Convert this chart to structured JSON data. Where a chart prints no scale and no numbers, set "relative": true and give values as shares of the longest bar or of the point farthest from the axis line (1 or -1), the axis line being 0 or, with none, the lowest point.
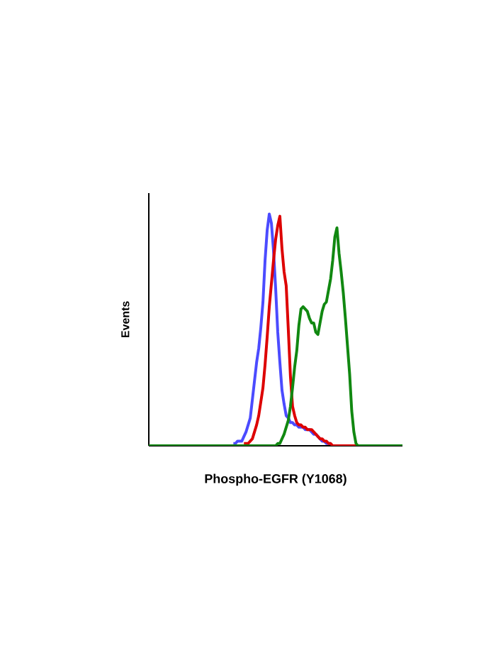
{
  "chart_data": {
    "type": "line",
    "xlabel": "Phospho-EGFR (Y1068)",
    "ylabel": "Events",
    "relative": true,
    "categories": [
      null,
      null,
      null,
      null,
      null,
      null,
      null,
      null,
      null,
      null,
      null,
      null,
      null,
      null,
      null,
      null,
      null,
      null,
      null,
      null,
      null,
      null,
      null,
      null,
      null,
      null,
      null,
      null,
      null,
      null,
      null,
      null,
      null,
      null,
      null,
      null,
      null,
      null,
      null,
      null,
      null,
      null,
      null,
      null,
      null,
      null,
      null,
      null,
      null,
      null,
      null,
      null,
      null,
      null,
      null,
      null,
      null,
      null,
      null,
      null,
      null,
      null,
      null,
      null,
      null,
      null,
      null,
      null,
      null,
      null,
      null,
      null,
      null,
      null,
      null,
      null,
      null,
      null,
      null,
      null,
      null,
      null,
      null,
      null,
      null,
      null,
      null,
      null,
      null,
      null,
      null,
      null,
      null,
      null,
      null,
      null,
      null,
      null,
      null,
      null,
      null,
      null,
      null,
      null,
      null,
      null,
      null,
      null,
      null,
      null,
      null,
      null,
      null,
      null,
      null,
      null,
      null,
      null,
      null,
      null,
      null
    ],
    "series": [
      {
        "color": "#4b4bff",
        "values": [
          null,
          null,
          null,
          null,
          null,
          null,
          null,
          null,
          null,
          null,
          null,
          null,
          null,
          null,
          null,
          null,
          null,
          null,
          null,
          null,
          null,
          null,
          null,
          null,
          null,
          null,
          null,
          null,
          null,
          null,
          null,
          null,
          null,
          null,
          null,
          null,
          null,
          null,
          null,
          null,
          0.01,
          0.01,
          0.02,
          0.02,
          0.02,
          0.04,
          0.06,
          0.09,
          0.12,
          0.2,
          0.28,
          0.36,
          0.42,
          0.51,
          0.62,
          0.8,
          0.93,
          1,
          0.96,
          0.84,
          0.68,
          0.49,
          0.36,
          0.24,
          0.18,
          0.13,
          0.12,
          0.1,
          0.1,
          0.09,
          0.09,
          0.08,
          0.08,
          0.08,
          0.07,
          0.07,
          0.07,
          0.06,
          0.05,
          0.05,
          0.04,
          0.03,
          0.02,
          0.02,
          0.01,
          0.01,
          0.01,
          null,
          null,
          null,
          null,
          null,
          null,
          null,
          null,
          null,
          null,
          null,
          null,
          null,
          null,
          null,
          null,
          null,
          null,
          null,
          null,
          null,
          null,
          null,
          null,
          null,
          null,
          null,
          null,
          null,
          null,
          null,
          null,
          null,
          null
        ]
      },
      {
        "color": "#dd0000",
        "values": [
          null,
          null,
          null,
          null,
          null,
          null,
          null,
          null,
          null,
          null,
          null,
          null,
          null,
          null,
          null,
          null,
          null,
          null,
          null,
          null,
          null,
          null,
          null,
          null,
          null,
          null,
          null,
          null,
          null,
          null,
          null,
          null,
          null,
          null,
          null,
          null,
          null,
          null,
          null,
          null,
          null,
          null,
          null,
          null,
          null,
          0.01,
          0.01,
          0.01,
          0.02,
          0.03,
          0.06,
          0.09,
          0.13,
          0.19,
          0.25,
          0.35,
          0.47,
          0.6,
          0.7,
          0.8,
          0.89,
          0.95,
          0.99,
          0.85,
          0.75,
          0.69,
          0.5,
          0.3,
          0.17,
          0.13,
          0.1,
          0.09,
          0.09,
          0.08,
          0.08,
          0.07,
          0.07,
          0.07,
          0.06,
          0.05,
          0.04,
          0.03,
          0.03,
          0.02,
          0.02,
          0.01,
          0.01,
          0,
          0,
          0,
          0,
          0,
          0,
          0,
          0,
          0,
          0,
          0,
          0,
          0,
          null,
          null,
          null,
          null,
          null,
          null,
          null,
          null,
          null,
          null,
          null,
          null,
          null,
          null,
          null,
          null,
          null,
          null,
          null,
          null,
          null
        ]
      },
      {
        "color": "#118811",
        "values": [
          0,
          0,
          0,
          0,
          0,
          0,
          0,
          0,
          0,
          0,
          0,
          0,
          0,
          0,
          0,
          0,
          0,
          0,
          0,
          0,
          0,
          0,
          0,
          0,
          0,
          0,
          0,
          0,
          0,
          0,
          0,
          0,
          0,
          0,
          0,
          0,
          0,
          0,
          0,
          0,
          0,
          0,
          0,
          0,
          0,
          0,
          0,
          0,
          0,
          0,
          0,
          0,
          0,
          0,
          0,
          0,
          0,
          0,
          0,
          0,
          0,
          0.01,
          0.01,
          0.03,
          0.05,
          0.08,
          0.11,
          0.17,
          0.25,
          0.34,
          0.41,
          0.52,
          0.59,
          0.6,
          0.59,
          0.58,
          0.55,
          0.53,
          0.53,
          0.49,
          0.48,
          0.53,
          0.58,
          0.61,
          0.62,
          0.67,
          0.72,
          0.8,
          0.9,
          0.94,
          0.83,
          0.75,
          0.66,
          0.55,
          0.43,
          0.31,
          0.15,
          0.06,
          0.01,
          0,
          0,
          0,
          0,
          0,
          0,
          0,
          0,
          0,
          0,
          0,
          0,
          0,
          0,
          0,
          0,
          0,
          0,
          0,
          0,
          0,
          0
        ]
      }
    ]
  }
}
